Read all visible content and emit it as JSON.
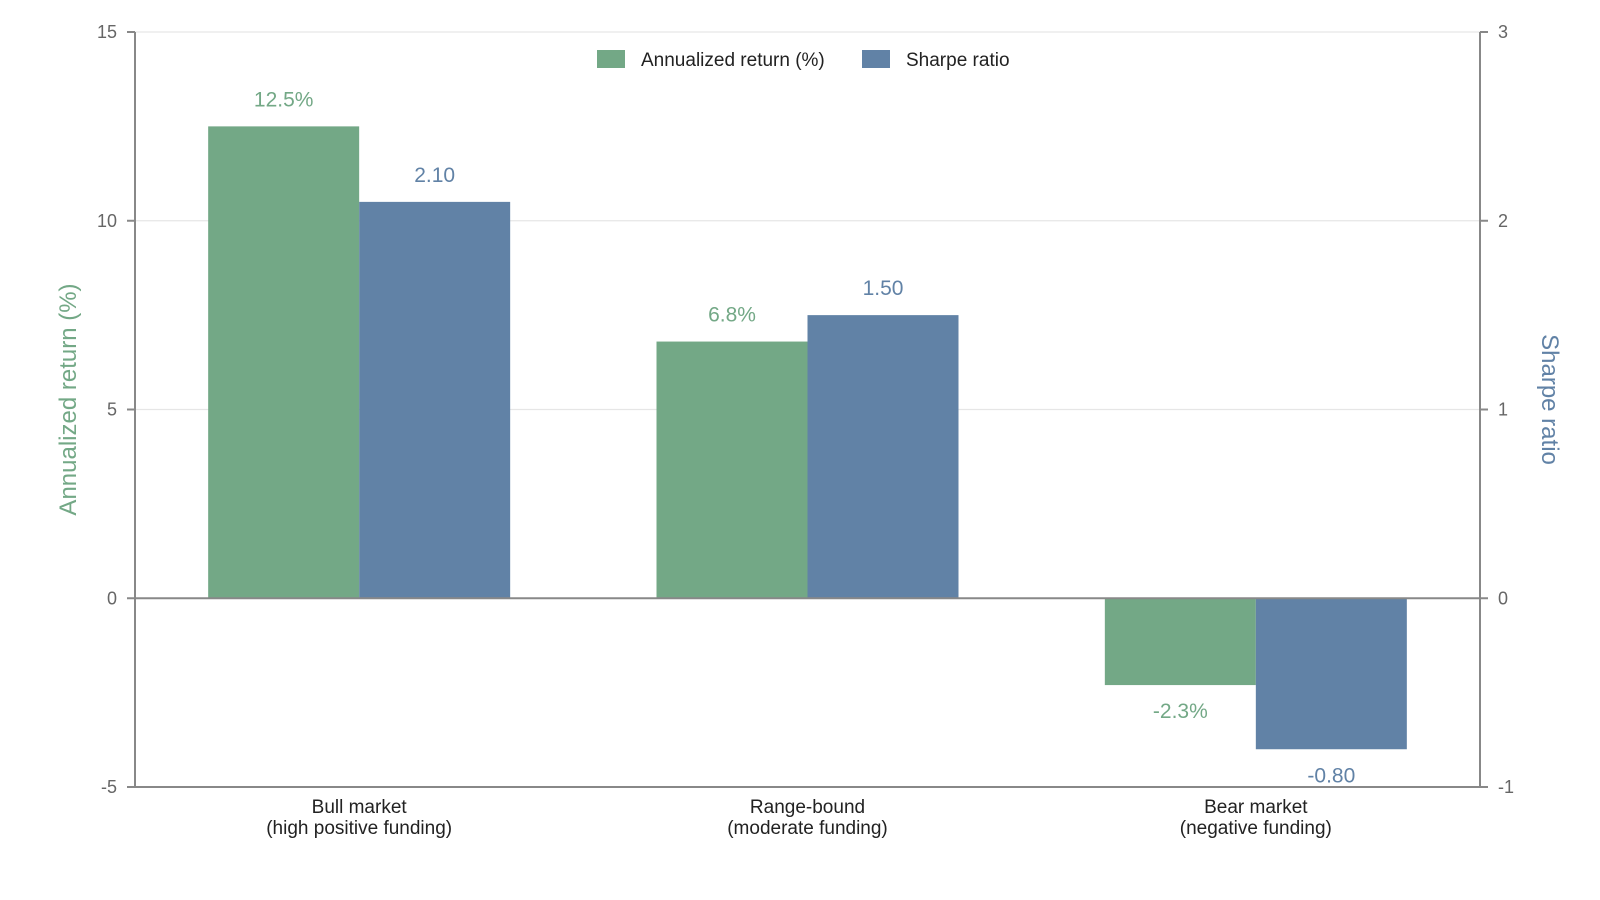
{
  "chart_data": {
    "type": "bar",
    "categories": [
      [
        "Bull market",
        "(high positive funding)"
      ],
      [
        "Range-bound",
        "(moderate funding)"
      ],
      [
        "Bear market",
        "(negative funding)"
      ]
    ],
    "series": [
      {
        "name": "Annualized return (%)",
        "axis": "left",
        "color": "#73a886",
        "values": [
          12.5,
          6.8,
          -2.3
        ],
        "labels": [
          "12.5%",
          "6.8%",
          "-2.3%"
        ]
      },
      {
        "name": "Sharpe ratio",
        "axis": "right",
        "color": "#6182a6",
        "values": [
          2.1,
          1.5,
          -0.8
        ],
        "labels": [
          "2.10",
          "1.50",
          "-0.80"
        ]
      }
    ],
    "y_left": {
      "label": "Annualized return (%)",
      "range": [
        -5,
        15
      ],
      "ticks": [
        "-5",
        "0",
        "5",
        "10",
        "15"
      ],
      "color": "#73a886"
    },
    "y_right": {
      "label": "Sharpe ratio",
      "range": [
        -1,
        3
      ],
      "ticks": [
        "-1",
        "0",
        "1",
        "2",
        "3"
      ],
      "color": "#6182a6"
    },
    "grid": true,
    "legend_position": "top-center",
    "colors": {
      "axis": "#888888",
      "grid": "#e6e6e6",
      "zero_line": "#888888"
    }
  }
}
